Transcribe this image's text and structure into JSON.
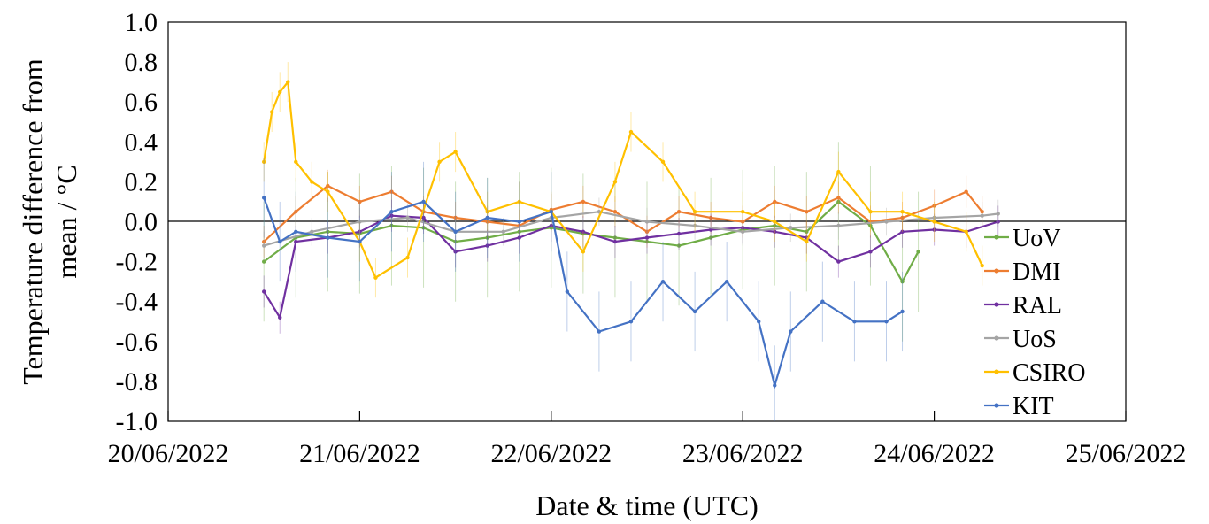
{
  "chart_data": {
    "type": "line",
    "title": "",
    "xlabel": "Date & time (UTC)",
    "ylabel_lines": [
      "Temperature difference from",
      "mean / °C"
    ],
    "x_ticks": [
      "20/06/2022",
      "21/06/2022",
      "22/06/2022",
      "23/06/2022",
      "24/06/2022",
      "25/06/2022"
    ],
    "xlim": [
      "20/06/2022 00:00",
      "25/06/2022 00:00"
    ],
    "ylim": [
      -1.0,
      1.0
    ],
    "y_ticks": [
      "1.0",
      "0.8",
      "0.6",
      "0.4",
      "0.2",
      "0.0",
      "-0.2",
      "-0.4",
      "-0.6",
      "-0.8",
      "-1.0"
    ],
    "grid": false,
    "zero_line": true,
    "error_bars": true,
    "legend_position": "right",
    "series": [
      {
        "name": "UoV",
        "color": "#70ad47",
        "x": [
          "20/06/2022 12:00",
          "20/06/2022 16:00",
          "20/06/2022 20:00",
          "21/06/2022 00:00",
          "21/06/2022 04:00",
          "21/06/2022 08:00",
          "21/06/2022 12:00",
          "21/06/2022 16:00",
          "21/06/2022 20:00",
          "22/06/2022 00:00",
          "22/06/2022 04:00",
          "22/06/2022 08:00",
          "22/06/2022 12:00",
          "22/06/2022 16:00",
          "22/06/2022 20:00",
          "23/06/2022 00:00",
          "23/06/2022 04:00",
          "23/06/2022 08:00",
          "23/06/2022 12:00",
          "23/06/2022 16:00",
          "23/06/2022 20:00",
          "23/06/2022 22:00"
        ],
        "y": [
          -0.2,
          -0.08,
          -0.05,
          -0.06,
          -0.02,
          -0.03,
          -0.1,
          -0.08,
          -0.05,
          -0.03,
          -0.06,
          -0.08,
          -0.1,
          -0.12,
          -0.08,
          -0.04,
          -0.02,
          -0.05,
          0.1,
          -0.02,
          -0.3,
          -0.15
        ],
        "err": 0.3
      },
      {
        "name": "DMI",
        "color": "#ed7d31",
        "x": [
          "20/06/2022 12:00",
          "20/06/2022 16:00",
          "20/06/2022 20:00",
          "21/06/2022 00:00",
          "21/06/2022 04:00",
          "21/06/2022 08:00",
          "21/06/2022 12:00",
          "21/06/2022 16:00",
          "21/06/2022 20:00",
          "22/06/2022 00:00",
          "22/06/2022 04:00",
          "22/06/2022 08:00",
          "22/06/2022 12:00",
          "22/06/2022 16:00",
          "22/06/2022 20:00",
          "23/06/2022 00:00",
          "23/06/2022 04:00",
          "23/06/2022 08:00",
          "23/06/2022 12:00",
          "23/06/2022 16:00",
          "23/06/2022 20:00",
          "24/06/2022 00:00",
          "24/06/2022 04:00",
          "24/06/2022 06:00"
        ],
        "y": [
          -0.1,
          0.05,
          0.18,
          0.1,
          0.15,
          0.05,
          0.02,
          0.0,
          -0.02,
          0.06,
          0.1,
          0.05,
          -0.05,
          0.05,
          0.02,
          0.0,
          0.1,
          0.05,
          0.12,
          0.0,
          0.02,
          0.08,
          0.15,
          0.05
        ],
        "err": 0.08
      },
      {
        "name": "RAL",
        "color": "#7030a0",
        "x": [
          "20/06/2022 12:00",
          "20/06/2022 14:00",
          "20/06/2022 16:00",
          "20/06/2022 20:00",
          "21/06/2022 00:00",
          "21/06/2022 04:00",
          "21/06/2022 08:00",
          "21/06/2022 12:00",
          "21/06/2022 16:00",
          "21/06/2022 20:00",
          "22/06/2022 00:00",
          "22/06/2022 04:00",
          "22/06/2022 08:00",
          "22/06/2022 12:00",
          "22/06/2022 16:00",
          "22/06/2022 20:00",
          "23/06/2022 00:00",
          "23/06/2022 04:00",
          "23/06/2022 08:00",
          "23/06/2022 12:00",
          "23/06/2022 16:00",
          "23/06/2022 20:00",
          "24/06/2022 00:00",
          "24/06/2022 04:00",
          "24/06/2022 08:00"
        ],
        "y": [
          -0.35,
          -0.48,
          -0.1,
          -0.08,
          -0.05,
          0.03,
          0.02,
          -0.15,
          -0.12,
          -0.08,
          -0.02,
          -0.05,
          -0.1,
          -0.08,
          -0.06,
          -0.04,
          -0.03,
          -0.05,
          -0.08,
          -0.2,
          -0.15,
          -0.05,
          -0.04,
          -0.05,
          0.0
        ],
        "err": 0.08
      },
      {
        "name": "UoS",
        "color": "#a5a5a5",
        "x": [
          "20/06/2022 12:00",
          "20/06/2022 18:00",
          "21/06/2022 00:00",
          "21/06/2022 06:00",
          "21/06/2022 12:00",
          "21/06/2022 18:00",
          "22/06/2022 00:00",
          "22/06/2022 06:00",
          "22/06/2022 12:00",
          "22/06/2022 18:00",
          "23/06/2022 00:00",
          "23/06/2022 06:00",
          "23/06/2022 12:00",
          "23/06/2022 18:00",
          "24/06/2022 00:00",
          "24/06/2022 06:00",
          "24/06/2022 08:00"
        ],
        "y": [
          -0.12,
          -0.05,
          0.0,
          0.02,
          -0.05,
          -0.05,
          0.02,
          0.05,
          0.0,
          -0.02,
          -0.05,
          -0.03,
          -0.02,
          0.0,
          0.02,
          0.03,
          0.04
        ],
        "err": 0.07
      },
      {
        "name": "CSIRO",
        "color": "#ffc000",
        "x": [
          "20/06/2022 12:00",
          "20/06/2022 13:00",
          "20/06/2022 14:00",
          "20/06/2022 15:00",
          "20/06/2022 16:00",
          "20/06/2022 18:00",
          "20/06/2022 20:00",
          "21/06/2022 00:00",
          "21/06/2022 02:00",
          "21/06/2022 06:00",
          "21/06/2022 10:00",
          "21/06/2022 12:00",
          "21/06/2022 16:00",
          "21/06/2022 20:00",
          "22/06/2022 00:00",
          "22/06/2022 04:00",
          "22/06/2022 08:00",
          "22/06/2022 10:00",
          "22/06/2022 14:00",
          "22/06/2022 18:00",
          "23/06/2022 00:00",
          "23/06/2022 04:00",
          "23/06/2022 08:00",
          "23/06/2022 12:00",
          "23/06/2022 16:00",
          "23/06/2022 20:00",
          "24/06/2022 00:00",
          "24/06/2022 04:00",
          "24/06/2022 06:00"
        ],
        "y": [
          0.3,
          0.55,
          0.65,
          0.7,
          0.3,
          0.2,
          0.15,
          -0.1,
          -0.28,
          -0.18,
          0.3,
          0.35,
          0.05,
          0.1,
          0.05,
          -0.15,
          0.2,
          0.45,
          0.3,
          0.05,
          0.05,
          0.0,
          -0.1,
          0.25,
          0.05,
          0.05,
          0.0,
          -0.05,
          -0.22
        ],
        "err": 0.1
      },
      {
        "name": "KIT",
        "color": "#4472c4",
        "x": [
          "20/06/2022 12:00",
          "20/06/2022 14:00",
          "20/06/2022 16:00",
          "20/06/2022 20:00",
          "21/06/2022 00:00",
          "21/06/2022 04:00",
          "21/06/2022 08:00",
          "21/06/2022 12:00",
          "21/06/2022 16:00",
          "21/06/2022 20:00",
          "22/06/2022 00:00",
          "22/06/2022 02:00",
          "22/06/2022 06:00",
          "22/06/2022 10:00",
          "22/06/2022 14:00",
          "22/06/2022 18:00",
          "22/06/2022 22:00",
          "23/06/2022 02:00",
          "23/06/2022 04:00",
          "23/06/2022 06:00",
          "23/06/2022 10:00",
          "23/06/2022 14:00",
          "23/06/2022 18:00",
          "23/06/2022 20:00"
        ],
        "y": [
          0.12,
          -0.1,
          -0.05,
          -0.08,
          -0.1,
          0.05,
          0.1,
          -0.05,
          0.02,
          0.0,
          0.05,
          -0.35,
          -0.55,
          -0.5,
          -0.3,
          -0.45,
          -0.3,
          -0.5,
          -0.82,
          -0.55,
          -0.4,
          -0.5,
          -0.5,
          -0.45
        ],
        "err": 0.2
      }
    ]
  }
}
